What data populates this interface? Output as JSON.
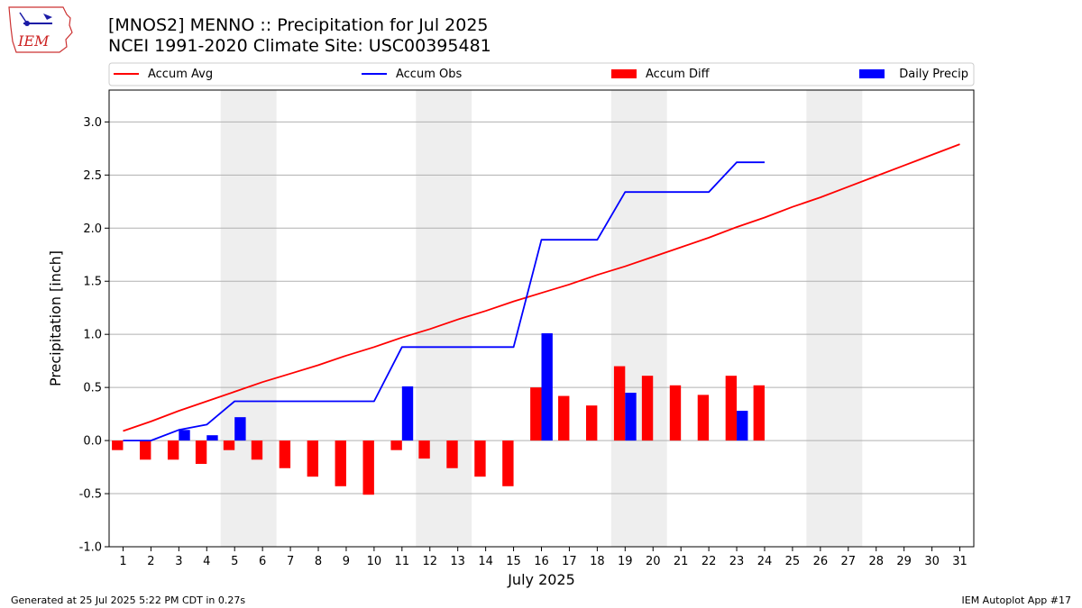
{
  "header": {
    "title_line1": "[MNOS2] MENNO :: Precipitation for Jul 2025",
    "title_line2": "NCEI 1991-2020 Climate Site: USC00395481"
  },
  "logo": {
    "text": "IEM",
    "colors": {
      "outline": "#cc3333",
      "text": "#cc2222",
      "glyph": "#1a1aa6"
    }
  },
  "footer": {
    "left": "Generated at 25 Jul 2025 5:22 PM CDT in 0.27s",
    "right": "IEM Autoplot App #17"
  },
  "chart_data": {
    "type": "bar",
    "xlabel": "July 2025",
    "ylabel": "Precipitation [inch]",
    "days": [
      1,
      2,
      3,
      4,
      5,
      6,
      7,
      8,
      9,
      10,
      11,
      12,
      13,
      14,
      15,
      16,
      17,
      18,
      19,
      20,
      21,
      22,
      23,
      24,
      25,
      26,
      27,
      28,
      29,
      30,
      31
    ],
    "xlim": [
      0.5,
      31.5
    ],
    "ylim": [
      -1.0,
      3.3
    ],
    "yticks": [
      -1.0,
      -0.5,
      0.0,
      0.5,
      1.0,
      1.5,
      2.0,
      2.5,
      3.0
    ],
    "grid": "horizontal",
    "weekend_shading": [
      [
        4.5,
        6.5
      ],
      [
        11.5,
        13.5
      ],
      [
        18.5,
        20.5
      ],
      [
        25.5,
        27.5
      ]
    ],
    "legend": {
      "placement": "top, above plot",
      "entries": [
        {
          "label": "Accum Avg",
          "kind": "line",
          "color": "#ff0000"
        },
        {
          "label": "Accum Obs",
          "kind": "line",
          "color": "#0000ff"
        },
        {
          "label": "Accum Diff",
          "kind": "bar",
          "color": "#ff0000"
        },
        {
          "label": "Daily Precip",
          "kind": "bar",
          "color": "#0000ff"
        }
      ]
    },
    "series": [
      {
        "name": "Accum Avg",
        "kind": "line",
        "color": "#ff0000",
        "x": [
          1,
          2,
          3,
          4,
          5,
          6,
          7,
          8,
          9,
          10,
          11,
          12,
          13,
          14,
          15,
          16,
          17,
          18,
          19,
          20,
          21,
          22,
          23,
          24,
          25,
          26,
          27,
          28,
          29,
          30,
          31
        ],
        "values": [
          0.09,
          0.18,
          0.28,
          0.37,
          0.46,
          0.55,
          0.63,
          0.71,
          0.8,
          0.88,
          0.97,
          1.05,
          1.14,
          1.22,
          1.31,
          1.39,
          1.47,
          1.56,
          1.64,
          1.73,
          1.82,
          1.91,
          2.01,
          2.1,
          2.2,
          2.29,
          2.39,
          2.49,
          2.59,
          2.69,
          2.79
        ]
      },
      {
        "name": "Accum Obs",
        "kind": "line",
        "color": "#0000ff",
        "x": [
          1,
          2,
          3,
          4,
          5,
          6,
          7,
          8,
          9,
          10,
          11,
          12,
          13,
          14,
          15,
          16,
          17,
          18,
          19,
          20,
          21,
          22,
          23,
          24
        ],
        "values": [
          0.0,
          0.0,
          0.1,
          0.15,
          0.37,
          0.37,
          0.37,
          0.37,
          0.37,
          0.37,
          0.88,
          0.88,
          0.88,
          0.88,
          0.88,
          1.89,
          1.89,
          1.89,
          2.34,
          2.34,
          2.34,
          2.34,
          2.62,
          2.62
        ]
      },
      {
        "name": "Accum Diff",
        "kind": "bar",
        "color": "#ff0000",
        "x": [
          1,
          2,
          3,
          4,
          5,
          6,
          7,
          8,
          9,
          10,
          11,
          12,
          13,
          14,
          15,
          16,
          17,
          18,
          19,
          20,
          21,
          22,
          23,
          24
        ],
        "values": [
          -0.09,
          -0.18,
          -0.18,
          -0.22,
          -0.09,
          -0.18,
          -0.26,
          -0.34,
          -0.43,
          -0.51,
          -0.09,
          -0.17,
          -0.26,
          -0.34,
          -0.43,
          0.5,
          0.42,
          0.33,
          0.7,
          0.61,
          0.52,
          0.43,
          0.61,
          0.52
        ]
      },
      {
        "name": "Daily Precip",
        "kind": "bar",
        "color": "#0000ff",
        "x": [
          1,
          2,
          3,
          4,
          5,
          6,
          7,
          8,
          9,
          10,
          11,
          12,
          13,
          14,
          15,
          16,
          17,
          18,
          19,
          20,
          21,
          22,
          23,
          24
        ],
        "values": [
          0,
          0,
          0.1,
          0.05,
          0.22,
          0,
          0,
          0,
          0,
          0,
          0.51,
          0,
          0,
          0,
          0,
          1.01,
          0,
          0,
          0.45,
          0,
          0,
          0,
          0.28,
          0
        ]
      }
    ]
  }
}
